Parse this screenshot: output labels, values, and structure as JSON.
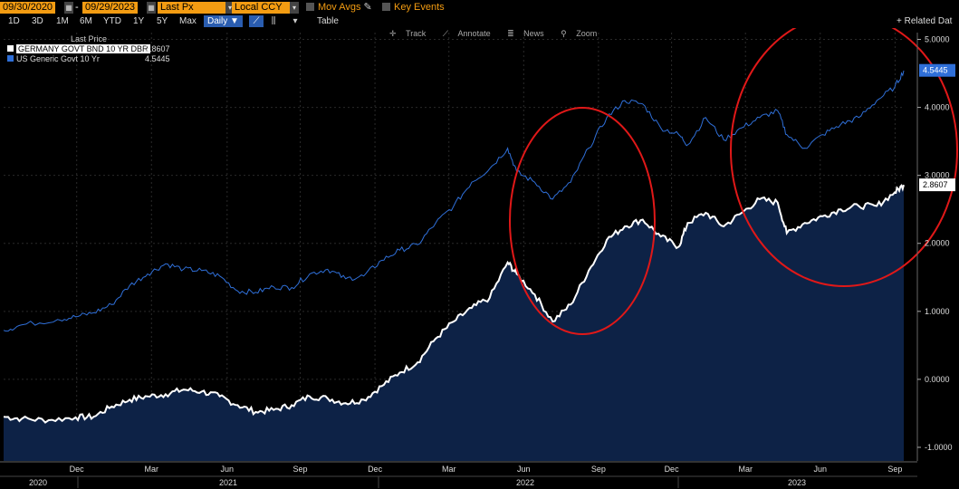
{
  "toolbar": {
    "start_date": "09/30/2020",
    "end_date": "09/29/2023",
    "field": "Last Px",
    "currency": "Local CCY",
    "mov_avgs": "Mov Avgs",
    "key_events": "Key Events"
  },
  "range_bar": {
    "ranges": [
      "1D",
      "3D",
      "1M",
      "6M",
      "YTD",
      "1Y",
      "5Y",
      "Max"
    ],
    "frequency": "Daily ▼",
    "table": "Table",
    "related": "+ Related Dat"
  },
  "chart_tools": {
    "track": "Track",
    "annotate": "Annotate",
    "news": "News",
    "zoom": "Zoom"
  },
  "legend": {
    "header": "Last Price",
    "items": [
      {
        "name": "GERMANY GOVT BND 10 YR DBR",
        "value": "2.8607",
        "color": "#ffffff"
      },
      {
        "name": "US Generic Govt 10 Yr",
        "value": "4.5445",
        "color": "#2f6fd8"
      }
    ]
  },
  "chart_data": {
    "type": "line",
    "ylim": [
      -1.2,
      5.1
    ],
    "y_ticks": [
      "5.0000",
      "4.0000",
      "3.0000",
      "2.0000",
      "1.0000",
      "0.0000",
      "-1.0000"
    ],
    "x_ticks": [
      "Dec",
      "Mar",
      "Jun",
      "Sep",
      "Dec",
      "Mar",
      "Jun",
      "Sep",
      "Dec",
      "Mar",
      "Jun",
      "Sep"
    ],
    "years": [
      "2020",
      "2021",
      "2022",
      "2023"
    ],
    "series": [
      {
        "name": "US Generic Govt 10 Yr",
        "color": "#2f6fd8",
        "last": "4.5445",
        "points": [
          [
            0,
            0.72
          ],
          [
            0.02,
            0.8
          ],
          [
            0.06,
            0.88
          ],
          [
            0.08,
            0.92
          ],
          [
            0.1,
            0.98
          ],
          [
            0.12,
            1.1
          ],
          [
            0.14,
            1.38
          ],
          [
            0.16,
            1.55
          ],
          [
            0.18,
            1.7
          ],
          [
            0.2,
            1.62
          ],
          [
            0.22,
            1.6
          ],
          [
            0.24,
            1.52
          ],
          [
            0.26,
            1.3
          ],
          [
            0.28,
            1.28
          ],
          [
            0.3,
            1.36
          ],
          [
            0.32,
            1.35
          ],
          [
            0.34,
            1.55
          ],
          [
            0.36,
            1.62
          ],
          [
            0.38,
            1.48
          ],
          [
            0.4,
            1.52
          ],
          [
            0.42,
            1.75
          ],
          [
            0.44,
            1.9
          ],
          [
            0.46,
            1.98
          ],
          [
            0.48,
            2.3
          ],
          [
            0.5,
            2.55
          ],
          [
            0.52,
            2.9
          ],
          [
            0.54,
            3.1
          ],
          [
            0.56,
            3.4
          ],
          [
            0.57,
            3.05
          ],
          [
            0.59,
            2.9
          ],
          [
            0.61,
            2.65
          ],
          [
            0.63,
            2.9
          ],
          [
            0.65,
            3.4
          ],
          [
            0.67,
            3.85
          ],
          [
            0.69,
            4.1
          ],
          [
            0.71,
            4.05
          ],
          [
            0.73,
            3.7
          ],
          [
            0.75,
            3.6
          ],
          [
            0.76,
            3.45
          ],
          [
            0.78,
            3.85
          ],
          [
            0.8,
            3.52
          ],
          [
            0.82,
            3.7
          ],
          [
            0.84,
            3.85
          ],
          [
            0.86,
            3.95
          ],
          [
            0.87,
            3.6
          ],
          [
            0.89,
            3.4
          ],
          [
            0.91,
            3.6
          ],
          [
            0.93,
            3.75
          ],
          [
            0.95,
            3.85
          ],
          [
            0.97,
            4.1
          ],
          [
            0.99,
            4.3
          ],
          [
            1.0,
            4.54
          ]
        ]
      },
      {
        "name": "GERMANY GOVT BND 10 YR DBR",
        "color": "#ffffff",
        "last": "2.8607",
        "points": [
          [
            0,
            -0.55
          ],
          [
            0.02,
            -0.58
          ],
          [
            0.05,
            -0.6
          ],
          [
            0.08,
            -0.56
          ],
          [
            0.1,
            -0.55
          ],
          [
            0.12,
            -0.4
          ],
          [
            0.14,
            -0.3
          ],
          [
            0.16,
            -0.25
          ],
          [
            0.18,
            -0.22
          ],
          [
            0.2,
            -0.15
          ],
          [
            0.22,
            -0.18
          ],
          [
            0.24,
            -0.25
          ],
          [
            0.26,
            -0.38
          ],
          [
            0.28,
            -0.48
          ],
          [
            0.3,
            -0.45
          ],
          [
            0.32,
            -0.38
          ],
          [
            0.34,
            -0.25
          ],
          [
            0.36,
            -0.28
          ],
          [
            0.38,
            -0.35
          ],
          [
            0.4,
            -0.3
          ],
          [
            0.42,
            -0.1
          ],
          [
            0.44,
            0.1
          ],
          [
            0.46,
            0.25
          ],
          [
            0.48,
            0.6
          ],
          [
            0.5,
            0.85
          ],
          [
            0.52,
            1.05
          ],
          [
            0.54,
            1.2
          ],
          [
            0.56,
            1.72
          ],
          [
            0.57,
            1.55
          ],
          [
            0.59,
            1.25
          ],
          [
            0.61,
            0.85
          ],
          [
            0.63,
            1.1
          ],
          [
            0.65,
            1.6
          ],
          [
            0.67,
            2.05
          ],
          [
            0.69,
            2.25
          ],
          [
            0.71,
            2.35
          ],
          [
            0.73,
            2.1
          ],
          [
            0.75,
            1.95
          ],
          [
            0.76,
            2.3
          ],
          [
            0.78,
            2.45
          ],
          [
            0.8,
            2.25
          ],
          [
            0.82,
            2.45
          ],
          [
            0.84,
            2.65
          ],
          [
            0.86,
            2.6
          ],
          [
            0.87,
            2.15
          ],
          [
            0.89,
            2.3
          ],
          [
            0.91,
            2.4
          ],
          [
            0.93,
            2.5
          ],
          [
            0.95,
            2.55
          ],
          [
            0.97,
            2.55
          ],
          [
            0.99,
            2.75
          ],
          [
            1.0,
            2.86
          ]
        ]
      }
    ]
  }
}
